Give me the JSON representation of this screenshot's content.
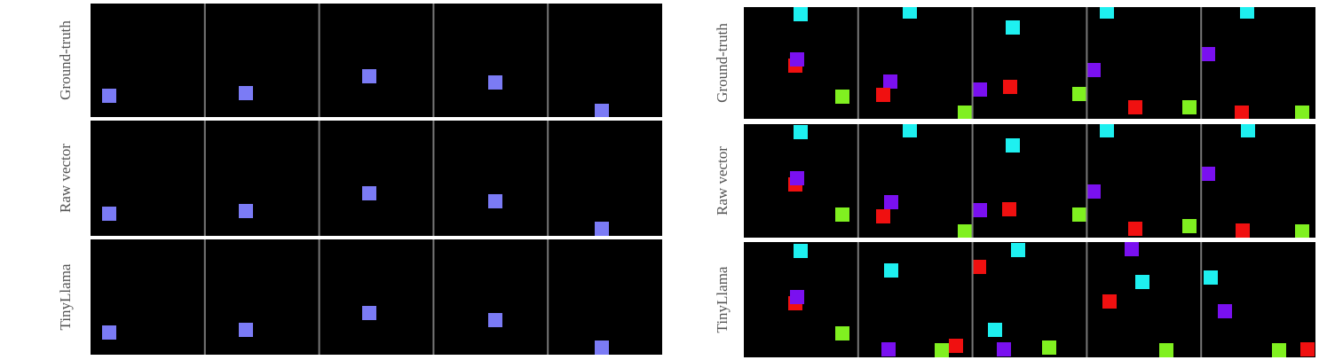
{
  "panels": [
    {
      "rows": [
        {
          "label": "Ground-truth"
        },
        {
          "label": "Raw vector"
        },
        {
          "label": "TinyLlama"
        }
      ]
    },
    {
      "rows": [
        {
          "label": "Ground-truth"
        },
        {
          "label": "Raw vector"
        },
        {
          "label": "TinyLlama"
        }
      ]
    }
  ]
}
